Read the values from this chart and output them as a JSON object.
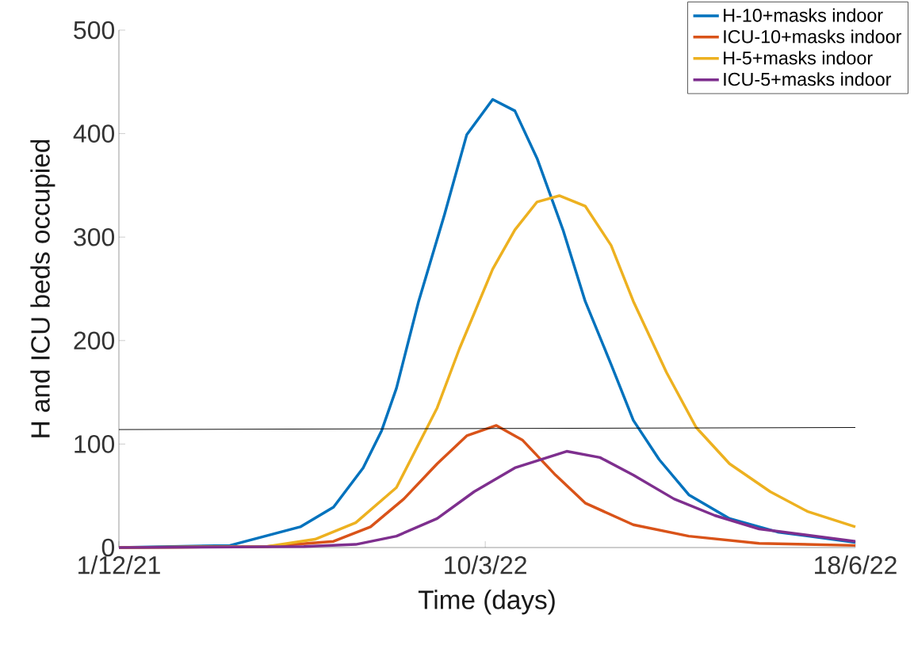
{
  "chart_data": {
    "type": "line",
    "xlabel": "Time (days)",
    "ylabel": "H and ICU beds occupied",
    "xlim": [
      "2021-12-01",
      "2022-06-18"
    ],
    "xticks": [
      {
        "value": "2021-12-01",
        "label": "1/12/21"
      },
      {
        "value": "2022-03-10",
        "label": "10/3/22"
      },
      {
        "value": "2022-06-18",
        "label": "18/6/22"
      }
    ],
    "ylim": [
      0,
      500
    ],
    "yticks": [
      0,
      100,
      200,
      300,
      400,
      500
    ],
    "legend": "top right",
    "series": [
      {
        "name": "H-10+masks indoor",
        "color": "#0072bd",
        "x": [
          "2021-12-01",
          "2021-12-31",
          "2022-01-19",
          "2022-01-28",
          "2022-02-05",
          "2022-02-10",
          "2022-02-14",
          "2022-02-20",
          "2022-02-27",
          "2022-03-05",
          "2022-03-12",
          "2022-03-18",
          "2022-03-24",
          "2022-03-31",
          "2022-04-06",
          "2022-04-13",
          "2022-04-19",
          "2022-04-26",
          "2022-05-04",
          "2022-05-15",
          "2022-05-28",
          "2022-06-18"
        ],
        "values": [
          0,
          2,
          20,
          39,
          77,
          113,
          154,
          238,
          322,
          399,
          433,
          422,
          376,
          307,
          238,
          177,
          123,
          85,
          51,
          28,
          15,
          5
        ]
      },
      {
        "name": "ICU-10+masks indoor",
        "color": "#d95319",
        "x": [
          "2021-12-01",
          "2022-01-10",
          "2022-01-28",
          "2022-02-07",
          "2022-02-16",
          "2022-02-25",
          "2022-03-05",
          "2022-03-13",
          "2022-03-20",
          "2022-03-29",
          "2022-04-06",
          "2022-04-19",
          "2022-05-04",
          "2022-05-23",
          "2022-06-18"
        ],
        "values": [
          0,
          1,
          6,
          20,
          47,
          81,
          108,
          118,
          104,
          70,
          43,
          22,
          11,
          4,
          2
        ]
      },
      {
        "name": "H-5+masks indoor",
        "color": "#edb120",
        "x": [
          "2021-12-01",
          "2022-01-10",
          "2022-01-23",
          "2022-02-03",
          "2022-02-14",
          "2022-02-25",
          "2022-03-03",
          "2022-03-12",
          "2022-03-18",
          "2022-03-24",
          "2022-03-30",
          "2022-04-06",
          "2022-04-13",
          "2022-04-19",
          "2022-04-28",
          "2022-05-06",
          "2022-05-15",
          "2022-05-26",
          "2022-06-05",
          "2022-06-18"
        ],
        "values": [
          0,
          1,
          8,
          24,
          58,
          135,
          192,
          269,
          307,
          334,
          340,
          330,
          292,
          238,
          169,
          116,
          81,
          54,
          35,
          20
        ]
      },
      {
        "name": "ICU-5+masks indoor",
        "color": "#7e2f8e",
        "x": [
          "2021-12-01",
          "2022-01-20",
          "2022-02-03",
          "2022-02-14",
          "2022-02-25",
          "2022-03-07",
          "2022-03-18",
          "2022-04-01",
          "2022-04-10",
          "2022-04-19",
          "2022-04-30",
          "2022-05-11",
          "2022-05-23",
          "2022-06-18"
        ],
        "values": [
          0,
          1,
          3,
          11,
          28,
          54,
          77,
          93,
          87,
          70,
          47,
          31,
          18,
          6
        ]
      },
      {
        "color": "#000000",
        "x": [
          "2021-12-01",
          "2022-06-18"
        ],
        "values": [
          114,
          116
        ]
      }
    ]
  }
}
